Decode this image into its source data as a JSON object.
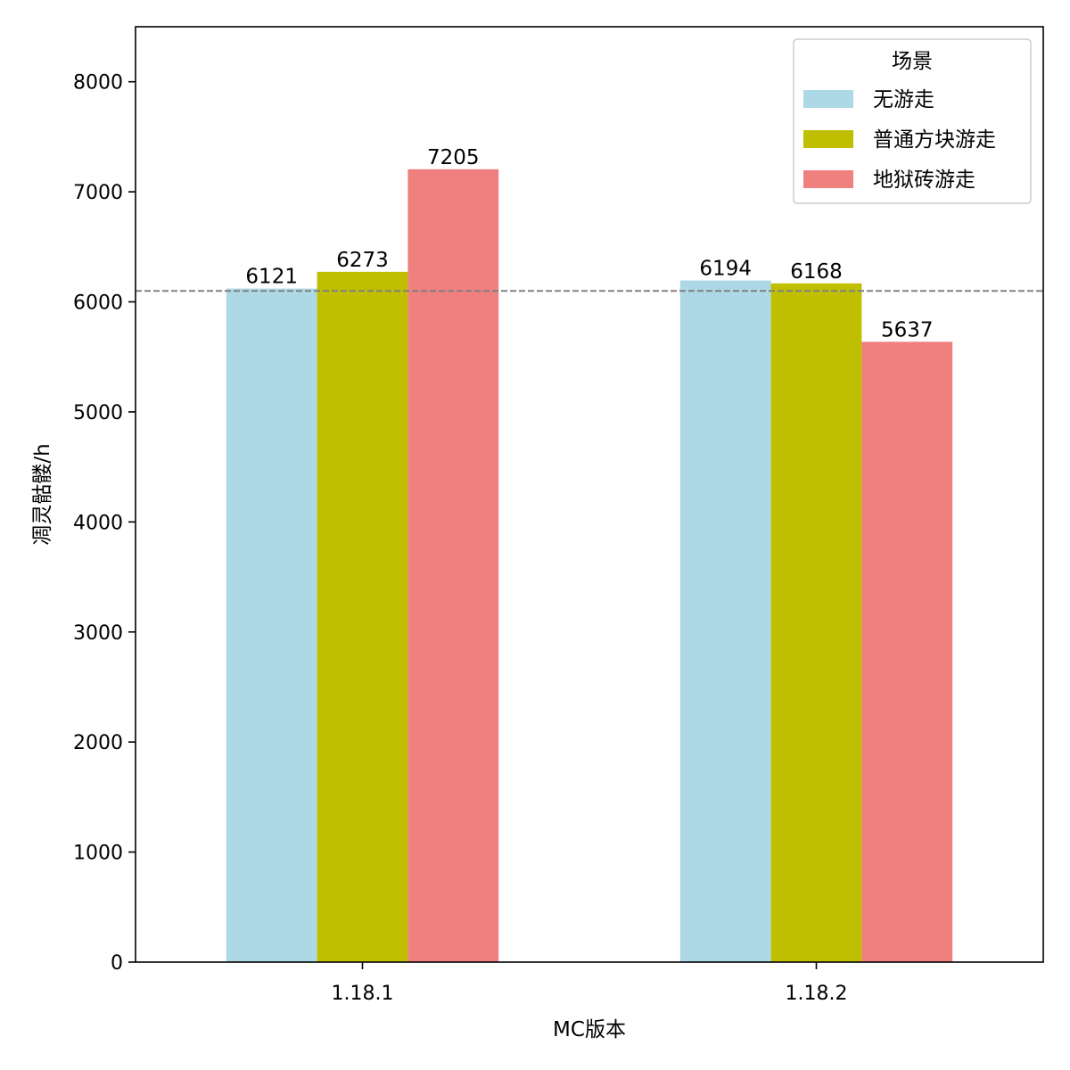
{
  "chart_data": {
    "type": "bar",
    "xlabel": "MC版本",
    "ylabel": "凋灵骷髅/h",
    "categories": [
      "1.18.1",
      "1.18.2"
    ],
    "series": [
      {
        "name": "无游走",
        "color": "#add8e6",
        "values": [
          6121,
          6194
        ]
      },
      {
        "name": "普通方块游走",
        "color": "#bfbf00",
        "values": [
          6273,
          6168
        ]
      },
      {
        "name": "地狱砖游走",
        "color": "#f08080",
        "values": [
          7205,
          5637
        ]
      }
    ],
    "reference_line": {
      "value": 6100,
      "color": "#808080",
      "style": "dashed"
    },
    "ylim": [
      0,
      8500
    ],
    "yticks": [
      0,
      1000,
      2000,
      3000,
      4000,
      5000,
      6000,
      7000,
      8000
    ],
    "grid": false,
    "legend": {
      "title": "场景",
      "position": "top-right"
    }
  }
}
